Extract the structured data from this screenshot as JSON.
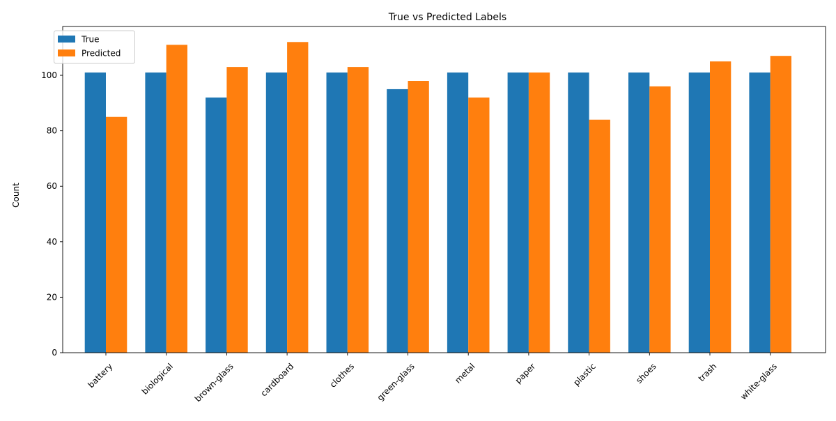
{
  "chart_data": {
    "type": "bar",
    "title": "True vs Predicted Labels",
    "xlabel": "",
    "ylabel": "Count",
    "categories": [
      "battery",
      "biological",
      "brown-glass",
      "cardboard",
      "clothes",
      "green-glass",
      "metal",
      "paper",
      "plastic",
      "shoes",
      "trash",
      "white-glass"
    ],
    "series": [
      {
        "name": "True",
        "color": "#1f77b4",
        "values": [
          101,
          101,
          92,
          101,
          101,
          95,
          101,
          101,
          101,
          101,
          101,
          101
        ]
      },
      {
        "name": "Predicted",
        "color": "#ff7f0e",
        "values": [
          85,
          111,
          103,
          112,
          103,
          98,
          92,
          101,
          84,
          96,
          105,
          107
        ]
      }
    ],
    "ylim": [
      0,
      117.6
    ],
    "yticks": [
      0,
      20,
      40,
      60,
      80,
      100
    ],
    "grid": false,
    "legend": "top-left"
  }
}
